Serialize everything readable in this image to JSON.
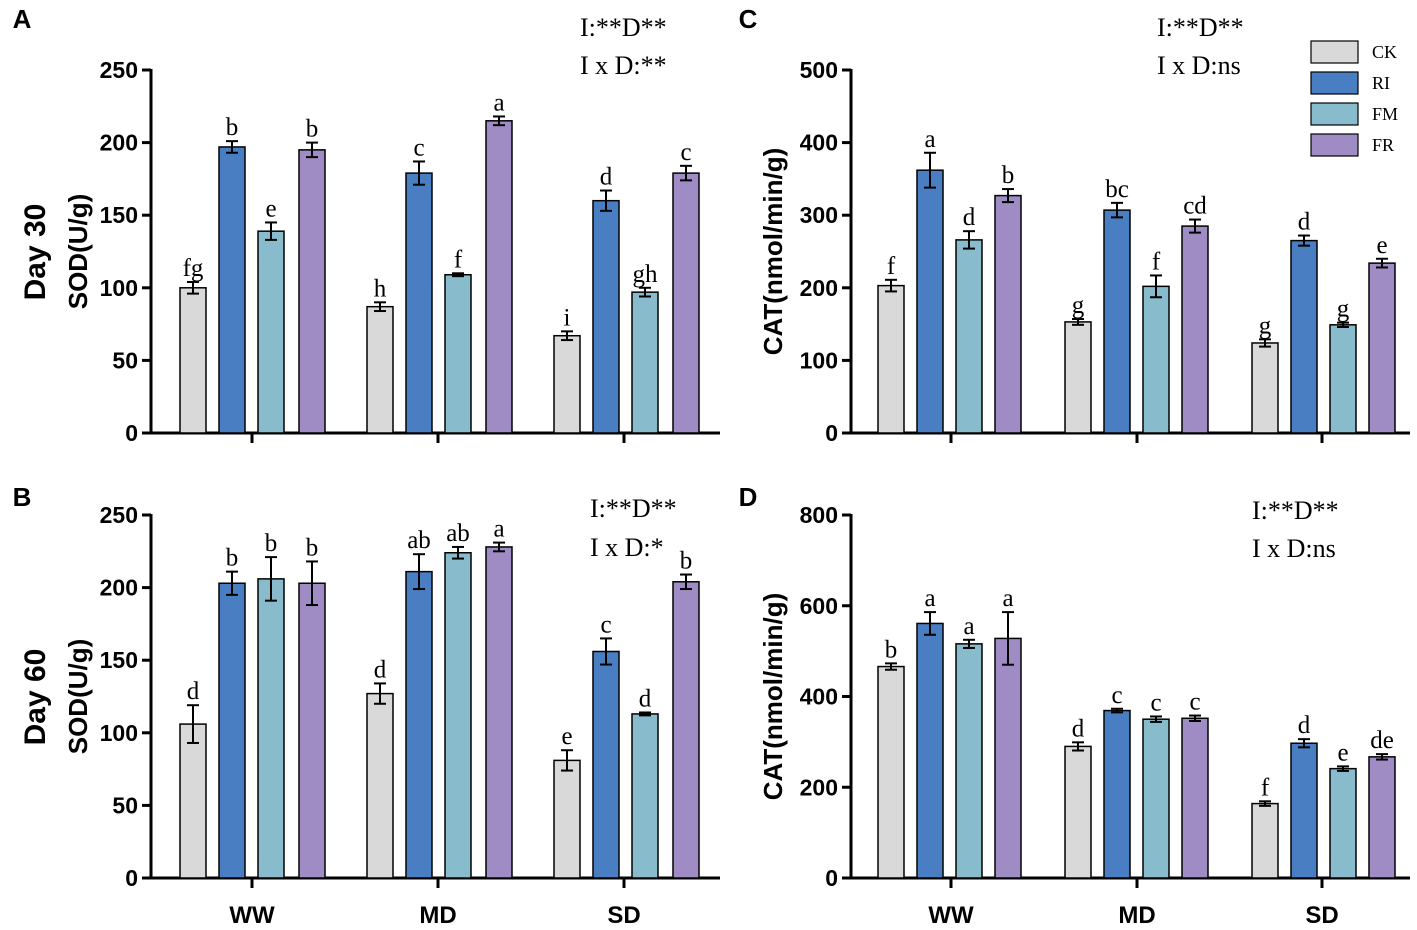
{
  "figure": {
    "row_labels": [
      "Day 30",
      "Day 60"
    ],
    "legend": [
      {
        "name": "CK",
        "color": "#d9d9d9"
      },
      {
        "name": "RI",
        "color": "#4a7ec2"
      },
      {
        "name": "FM",
        "color": "#88bccc"
      },
      {
        "name": "FR",
        "color": "#a08cc4"
      }
    ]
  },
  "chart_data": [
    {
      "panel": "A",
      "type": "bar",
      "ylabel": "SOD(U/g)",
      "ylim": [
        0,
        250
      ],
      "yticks": [
        0,
        50,
        100,
        150,
        200,
        250
      ],
      "categories": [
        "WW",
        "MD",
        "SD"
      ],
      "show_categories": false,
      "sig_lines": [
        "I:**D**",
        "I x D:**"
      ],
      "series": [
        {
          "name": "CK",
          "values": [
            100,
            87,
            67
          ],
          "errors": [
            4,
            3,
            3
          ],
          "labels": [
            "fg",
            "h",
            "i"
          ]
        },
        {
          "name": "RI",
          "values": [
            197,
            179,
            160
          ],
          "errors": [
            4,
            8,
            7
          ],
          "labels": [
            "b",
            "c",
            "d"
          ]
        },
        {
          "name": "FM",
          "values": [
            139,
            109,
            97
          ],
          "errors": [
            6,
            1,
            3
          ],
          "labels": [
            "e",
            "f",
            "gh"
          ]
        },
        {
          "name": "FR",
          "values": [
            195,
            215,
            179
          ],
          "errors": [
            5,
            3,
            5
          ],
          "labels": [
            "b",
            "a",
            "c"
          ]
        }
      ]
    },
    {
      "panel": "B",
      "type": "bar",
      "ylabel": "SOD(U/g)",
      "ylim": [
        0,
        250
      ],
      "yticks": [
        0,
        50,
        100,
        150,
        200,
        250
      ],
      "categories": [
        "WW",
        "MD",
        "SD"
      ],
      "show_categories": true,
      "sig_lines": [
        "I:**D**",
        "I x D:*"
      ],
      "series": [
        {
          "name": "CK",
          "values": [
            106,
            127,
            81
          ],
          "errors": [
            13,
            7,
            7
          ],
          "labels": [
            "d",
            "d",
            "e"
          ]
        },
        {
          "name": "RI",
          "values": [
            203,
            211,
            156
          ],
          "errors": [
            8,
            12,
            9
          ],
          "labels": [
            "b",
            "ab",
            "c"
          ]
        },
        {
          "name": "FM",
          "values": [
            206,
            224,
            113
          ],
          "errors": [
            15,
            4,
            1
          ],
          "labels": [
            "b",
            "ab",
            "d"
          ]
        },
        {
          "name": "FR",
          "values": [
            203,
            228,
            204
          ],
          "errors": [
            15,
            3,
            5
          ],
          "labels": [
            "b",
            "a",
            "b"
          ]
        }
      ]
    },
    {
      "panel": "C",
      "type": "bar",
      "ylabel": "CAT(nmol/min/g)",
      "ylim": [
        0,
        500
      ],
      "yticks": [
        0,
        100,
        200,
        300,
        400,
        500
      ],
      "categories": [
        "WW",
        "MD",
        "SD"
      ],
      "show_categories": false,
      "sig_lines": [
        "I:**D**",
        "I x D:ns"
      ],
      "series": [
        {
          "name": "CK",
          "values": [
            203,
            153,
            124
          ],
          "errors": [
            8,
            4,
            5
          ],
          "labels": [
            "f",
            "g",
            "g"
          ]
        },
        {
          "name": "RI",
          "values": [
            362,
            307,
            265
          ],
          "errors": [
            24,
            10,
            7
          ],
          "labels": [
            "a",
            "bc",
            "d"
          ]
        },
        {
          "name": "FM",
          "values": [
            266,
            202,
            149
          ],
          "errors": [
            12,
            15,
            3
          ],
          "labels": [
            "d",
            "f",
            "g"
          ]
        },
        {
          "name": "FR",
          "values": [
            327,
            285,
            234
          ],
          "errors": [
            9,
            9,
            6
          ],
          "labels": [
            "b",
            "cd",
            "e"
          ]
        }
      ]
    },
    {
      "panel": "D",
      "type": "bar",
      "ylabel": "CAT(nmol/min/g)",
      "ylim": [
        0,
        800
      ],
      "yticks": [
        0,
        200,
        400,
        600,
        800
      ],
      "categories": [
        "WW",
        "MD",
        "SD"
      ],
      "show_categories": true,
      "sig_lines": [
        "I:**D**",
        "I x D:ns"
      ],
      "series": [
        {
          "name": "CK",
          "values": [
            466,
            290,
            164
          ],
          "errors": [
            7,
            9,
            5
          ],
          "labels": [
            "b",
            "d",
            "f"
          ]
        },
        {
          "name": "RI",
          "values": [
            561,
            369,
            297
          ],
          "errors": [
            25,
            4,
            9
          ],
          "labels": [
            "a",
            "c",
            "d"
          ]
        },
        {
          "name": "FM",
          "values": [
            516,
            350,
            241
          ],
          "errors": [
            9,
            6,
            5
          ],
          "labels": [
            "a",
            "c",
            "e"
          ]
        },
        {
          "name": "FR",
          "values": [
            528,
            352,
            267
          ],
          "errors": [
            58,
            6,
            6
          ],
          "labels": [
            "a",
            "c",
            "de"
          ]
        }
      ]
    }
  ]
}
